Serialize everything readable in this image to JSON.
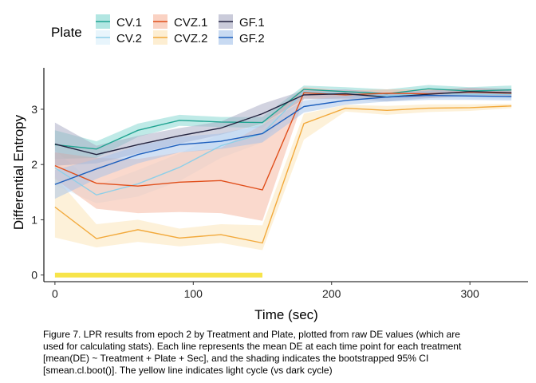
{
  "chart_data": {
    "type": "line",
    "xlabel": "Time (sec)",
    "ylabel": "Differential Entropy",
    "xlim": [
      -8,
      342
    ],
    "ylim": [
      -0.12,
      3.75
    ],
    "xticks": [
      0,
      100,
      200,
      300
    ],
    "yticks": [
      0,
      1,
      2,
      3
    ],
    "grid": false,
    "legend": {
      "title": "Plate",
      "position": "top-left"
    },
    "x": [
      0,
      30,
      60,
      90,
      120,
      150,
      180,
      210,
      240,
      270,
      300,
      330
    ],
    "series": [
      {
        "name": "CV.1",
        "color": "#1fa391",
        "fill": "#7fd6cf",
        "values": [
          2.36,
          2.28,
          2.62,
          2.8,
          2.77,
          2.76,
          3.36,
          3.32,
          3.28,
          3.37,
          3.33,
          3.35
        ],
        "lower": [
          2.1,
          2.12,
          2.5,
          2.7,
          2.68,
          2.66,
          3.28,
          3.24,
          3.2,
          3.3,
          3.26,
          3.27
        ],
        "upper": [
          2.62,
          2.42,
          2.74,
          2.9,
          2.86,
          2.86,
          3.43,
          3.4,
          3.36,
          3.44,
          3.4,
          3.43
        ]
      },
      {
        "name": "CV.2",
        "color": "#8ecfe8",
        "fill": "#d9eefa",
        "values": [
          1.94,
          1.45,
          1.65,
          1.95,
          2.34,
          2.56,
          3.32,
          3.28,
          3.24,
          3.29,
          3.27,
          3.27
        ],
        "lower": [
          1.62,
          1.3,
          1.42,
          1.7,
          2.12,
          2.4,
          3.24,
          3.2,
          3.16,
          3.21,
          3.19,
          3.19
        ],
        "upper": [
          2.26,
          1.62,
          1.9,
          2.2,
          2.56,
          2.72,
          3.4,
          3.36,
          3.32,
          3.37,
          3.35,
          3.35
        ]
      },
      {
        "name": "CVZ.1",
        "color": "#e04e1a",
        "fill": "#f6b49b",
        "values": [
          1.98,
          1.66,
          1.61,
          1.68,
          1.71,
          1.54,
          3.3,
          3.26,
          3.29,
          3.28,
          3.31,
          3.29
        ],
        "lower": [
          1.74,
          1.2,
          1.12,
          1.14,
          1.12,
          0.98,
          3.2,
          3.18,
          3.22,
          3.2,
          3.24,
          3.22
        ],
        "upper": [
          2.22,
          2.12,
          2.1,
          2.22,
          2.3,
          2.72,
          3.4,
          3.34,
          3.36,
          3.36,
          3.38,
          3.36
        ]
      },
      {
        "name": "CVZ.2",
        "color": "#f2a93b",
        "fill": "#fce3b4",
        "values": [
          1.23,
          0.66,
          0.82,
          0.67,
          0.73,
          0.58,
          2.74,
          3.02,
          2.98,
          3.02,
          3.03,
          3.06
        ],
        "lower": [
          0.68,
          0.5,
          0.6,
          0.52,
          0.58,
          0.45,
          2.45,
          2.96,
          2.9,
          2.95,
          2.97,
          3.02
        ],
        "upper": [
          1.78,
          0.92,
          1.0,
          0.84,
          0.92,
          0.9,
          2.92,
          3.08,
          3.06,
          3.09,
          3.09,
          3.1
        ]
      },
      {
        "name": "GF.1",
        "color": "#23233f",
        "fill": "#a6a8c2",
        "values": [
          2.37,
          2.18,
          2.36,
          2.52,
          2.66,
          2.92,
          3.26,
          3.28,
          3.22,
          3.27,
          3.32,
          3.3
        ],
        "lower": [
          1.98,
          2.02,
          2.2,
          2.38,
          2.54,
          2.74,
          3.18,
          3.2,
          3.14,
          3.2,
          3.25,
          3.23
        ],
        "upper": [
          2.76,
          2.34,
          2.52,
          2.66,
          2.78,
          3.1,
          3.34,
          3.36,
          3.3,
          3.34,
          3.39,
          3.37
        ]
      },
      {
        "name": "GF.2",
        "color": "#1d5fbd",
        "fill": "#a3c2ea",
        "values": [
          1.64,
          1.92,
          2.18,
          2.36,
          2.42,
          2.56,
          3.05,
          3.16,
          3.22,
          3.25,
          3.24,
          3.23
        ],
        "lower": [
          1.38,
          1.74,
          2.02,
          2.22,
          2.28,
          2.4,
          2.94,
          3.08,
          3.14,
          3.17,
          3.17,
          3.16
        ],
        "upper": [
          1.9,
          2.1,
          2.34,
          2.5,
          2.56,
          2.72,
          3.16,
          3.24,
          3.3,
          3.33,
          3.31,
          3.3
        ]
      }
    ],
    "light_cycle": {
      "x_start": 0,
      "x_end": 150,
      "y": 0,
      "color": "#f7e44a"
    }
  },
  "caption": [
    "Figure 7. LPR results from epoch 2 by Treatment and Plate, plotted from raw DE values (which are",
    "used for calculating stats). Each line represents the mean DE at each time point for each treatment",
    "[mean(DE) ~ Treatment + Plate + Sec], and the shading indicates the bootstrapped 95% CI",
    "[smean.cl.boot()]. The yellow line indicates light cycle (vs dark cycle)"
  ]
}
